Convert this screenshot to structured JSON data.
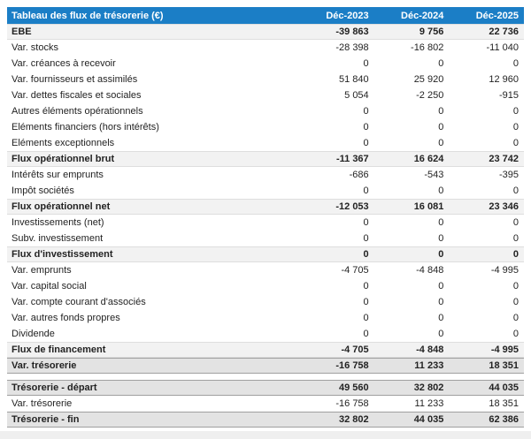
{
  "table": {
    "title": "Tableau des flux de trésorerie (€)",
    "columns": [
      "Déc-2023",
      "Déc-2024",
      "Déc-2025"
    ],
    "colors": {
      "header_bg": "#1b7ec6",
      "header_text": "#ffffff",
      "subtotal_bg": "#f2f2f2",
      "total_bg": "#e3e3e3"
    },
    "rows": [
      {
        "label": "EBE",
        "values": [
          "-39 863",
          "9 756",
          "22 736"
        ],
        "style": "subtotal"
      },
      {
        "label": "Var. stocks",
        "values": [
          "-28 398",
          "-16 802",
          "-11 040"
        ],
        "style": "normal"
      },
      {
        "label": "Var. créances à recevoir",
        "values": [
          "0",
          "0",
          "0"
        ],
        "style": "normal"
      },
      {
        "label": "Var. fournisseurs et assimilés",
        "values": [
          "51 840",
          "25 920",
          "12 960"
        ],
        "style": "normal"
      },
      {
        "label": "Var. dettes fiscales et sociales",
        "values": [
          "5 054",
          "-2 250",
          "-915"
        ],
        "style": "normal"
      },
      {
        "label": "Autres éléments opérationnels",
        "values": [
          "0",
          "0",
          "0"
        ],
        "style": "normal"
      },
      {
        "label": "Eléments financiers (hors intérêts)",
        "values": [
          "0",
          "0",
          "0"
        ],
        "style": "normal"
      },
      {
        "label": "Eléments exceptionnels",
        "values": [
          "0",
          "0",
          "0"
        ],
        "style": "normal"
      },
      {
        "label": "Flux opérationnel brut",
        "values": [
          "-11 367",
          "16 624",
          "23 742"
        ],
        "style": "subtotal"
      },
      {
        "label": "Intérêts sur emprunts",
        "values": [
          "-686",
          "-543",
          "-395"
        ],
        "style": "normal"
      },
      {
        "label": "Impôt sociétés",
        "values": [
          "0",
          "0",
          "0"
        ],
        "style": "normal"
      },
      {
        "label": "Flux opérationnel net",
        "values": [
          "-12 053",
          "16 081",
          "23 346"
        ],
        "style": "subtotal"
      },
      {
        "label": "Investissements (net)",
        "values": [
          "0",
          "0",
          "0"
        ],
        "style": "normal"
      },
      {
        "label": "Subv. investissement",
        "values": [
          "0",
          "0",
          "0"
        ],
        "style": "normal"
      },
      {
        "label": "Flux d'investissement",
        "values": [
          "0",
          "0",
          "0"
        ],
        "style": "subtotal"
      },
      {
        "label": "Var. emprunts",
        "values": [
          "-4 705",
          "-4 848",
          "-4 995"
        ],
        "style": "normal"
      },
      {
        "label": "Var. capital social",
        "values": [
          "0",
          "0",
          "0"
        ],
        "style": "normal"
      },
      {
        "label": "Var. compte courant d'associés",
        "values": [
          "0",
          "0",
          "0"
        ],
        "style": "normal"
      },
      {
        "label": "Var. autres fonds propres",
        "values": [
          "0",
          "0",
          "0"
        ],
        "style": "normal"
      },
      {
        "label": "Dividende",
        "values": [
          "0",
          "0",
          "0"
        ],
        "style": "normal"
      },
      {
        "label": "Flux de financement",
        "values": [
          "-4 705",
          "-4 848",
          "-4 995"
        ],
        "style": "subtotal"
      },
      {
        "label": "Var. trésorerie",
        "values": [
          "-16 758",
          "11 233",
          "18 351"
        ],
        "style": "total"
      },
      {
        "label": "",
        "values": [
          "",
          "",
          ""
        ],
        "style": "gap"
      },
      {
        "label": "Trésorerie - départ",
        "values": [
          "49 560",
          "32 802",
          "44 035"
        ],
        "style": "total"
      },
      {
        "label": "Var. trésorerie",
        "values": [
          "-16 758",
          "11 233",
          "18 351"
        ],
        "style": "normal"
      },
      {
        "label": "Trésorerie - fin",
        "values": [
          "32 802",
          "44 035",
          "62 386"
        ],
        "style": "total"
      }
    ]
  },
  "chart_data": {
    "type": "table",
    "title": "Tableau des flux de trésorerie (€)",
    "columns": [
      "Déc-2023",
      "Déc-2024",
      "Déc-2025"
    ],
    "rows": [
      {
        "label": "EBE",
        "values": [
          -39863,
          9756,
          22736
        ]
      },
      {
        "label": "Var. stocks",
        "values": [
          -28398,
          -16802,
          -11040
        ]
      },
      {
        "label": "Var. créances à recevoir",
        "values": [
          0,
          0,
          0
        ]
      },
      {
        "label": "Var. fournisseurs et assimilés",
        "values": [
          51840,
          25920,
          12960
        ]
      },
      {
        "label": "Var. dettes fiscales et sociales",
        "values": [
          5054,
          -2250,
          -915
        ]
      },
      {
        "label": "Autres éléments opérationnels",
        "values": [
          0,
          0,
          0
        ]
      },
      {
        "label": "Eléments financiers (hors intérêts)",
        "values": [
          0,
          0,
          0
        ]
      },
      {
        "label": "Eléments exceptionnels",
        "values": [
          0,
          0,
          0
        ]
      },
      {
        "label": "Flux opérationnel brut",
        "values": [
          -11367,
          16624,
          23742
        ]
      },
      {
        "label": "Intérêts sur emprunts",
        "values": [
          -686,
          -543,
          -395
        ]
      },
      {
        "label": "Impôt sociétés",
        "values": [
          0,
          0,
          0
        ]
      },
      {
        "label": "Flux opérationnel net",
        "values": [
          -12053,
          16081,
          23346
        ]
      },
      {
        "label": "Investissements (net)",
        "values": [
          0,
          0,
          0
        ]
      },
      {
        "label": "Subv. investissement",
        "values": [
          0,
          0,
          0
        ]
      },
      {
        "label": "Flux d'investissement",
        "values": [
          0,
          0,
          0
        ]
      },
      {
        "label": "Var. emprunts",
        "values": [
          -4705,
          -4848,
          -4995
        ]
      },
      {
        "label": "Var. capital social",
        "values": [
          0,
          0,
          0
        ]
      },
      {
        "label": "Var. compte courant d'associés",
        "values": [
          0,
          0,
          0
        ]
      },
      {
        "label": "Var. autres fonds propres",
        "values": [
          0,
          0,
          0
        ]
      },
      {
        "label": "Dividende",
        "values": [
          0,
          0,
          0
        ]
      },
      {
        "label": "Flux de financement",
        "values": [
          -4705,
          -4848,
          -4995
        ]
      },
      {
        "label": "Var. trésorerie",
        "values": [
          -16758,
          11233,
          18351
        ]
      },
      {
        "label": "Trésorerie - départ",
        "values": [
          49560,
          32802,
          44035
        ]
      },
      {
        "label": "Var. trésorerie",
        "values": [
          -16758,
          11233,
          18351
        ]
      },
      {
        "label": "Trésorerie - fin",
        "values": [
          32802,
          44035,
          62386
        ]
      }
    ]
  }
}
